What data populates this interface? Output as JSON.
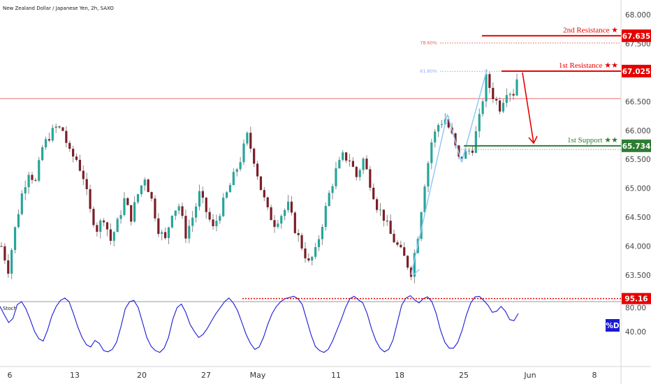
{
  "header": {
    "title": "New Zealand Dollar / Japanese Yen, 2h, SAXO"
  },
  "colors": {
    "up": "#26a69a",
    "down": "#7b1e28",
    "wick": "#888888",
    "resistance": "#e60000",
    "support": "#2e7d32",
    "stoch_line": "#1a1ad6",
    "fib_blue": "#8fa8ff",
    "fib_red": "#e06060",
    "projection": "#90caf9"
  },
  "chart_data": [
    {
      "type": "candlestick",
      "y_ticks": [
        "68.000",
        "67.500",
        "67.000",
        "66.500",
        "66.000",
        "65.500",
        "65.000",
        "64.500",
        "64.000",
        "63.500"
      ],
      "ylim": [
        63.2,
        68.1
      ],
      "x_ticks": [
        "6",
        "13",
        "20",
        "27",
        "May",
        "11",
        "18",
        "25",
        "Jun",
        "8"
      ],
      "close_path": [
        [
          0,
          64.0
        ],
        [
          2,
          63.6
        ],
        [
          4,
          64.3
        ],
        [
          6,
          64.9
        ],
        [
          8,
          65.3
        ],
        [
          10,
          65.1
        ],
        [
          12,
          65.7
        ],
        [
          14,
          65.9
        ],
        [
          16,
          66.05
        ],
        [
          18,
          66.0
        ],
        [
          20,
          65.6
        ],
        [
          22,
          65.5
        ],
        [
          24,
          65.2
        ],
        [
          26,
          64.6
        ],
        [
          28,
          64.3
        ],
        [
          30,
          64.5
        ],
        [
          32,
          64.1
        ],
        [
          34,
          64.4
        ],
        [
          36,
          64.8
        ],
        [
          38,
          64.5
        ],
        [
          40,
          64.9
        ],
        [
          42,
          65.2
        ],
        [
          44,
          64.8
        ],
        [
          46,
          64.3
        ],
        [
          48,
          64.1
        ],
        [
          50,
          64.6
        ],
        [
          52,
          64.7
        ],
        [
          54,
          64.2
        ],
        [
          56,
          64.5
        ],
        [
          58,
          64.9
        ],
        [
          60,
          64.6
        ],
        [
          62,
          64.3
        ],
        [
          64,
          64.6
        ],
        [
          66,
          64.9
        ],
        [
          68,
          65.2
        ],
        [
          70,
          65.5
        ],
        [
          72,
          65.9
        ],
        [
          74,
          65.5
        ],
        [
          76,
          65.0
        ],
        [
          78,
          64.6
        ],
        [
          80,
          64.4
        ],
        [
          82,
          64.55
        ],
        [
          84,
          64.7
        ],
        [
          86,
          64.3
        ],
        [
          88,
          64.0
        ],
        [
          90,
          63.7
        ],
        [
          92,
          63.9
        ],
        [
          94,
          64.4
        ],
        [
          96,
          64.9
        ],
        [
          98,
          65.3
        ],
        [
          100,
          65.55
        ],
        [
          102,
          65.5
        ],
        [
          104,
          65.2
        ],
        [
          106,
          65.5
        ],
        [
          108,
          65.1
        ],
        [
          110,
          64.7
        ],
        [
          112,
          64.5
        ],
        [
          114,
          64.2
        ],
        [
          116,
          64.0
        ],
        [
          118,
          63.8
        ],
        [
          120,
          63.55
        ],
        [
          122,
          64.2
        ],
        [
          124,
          65.1
        ],
        [
          126,
          65.8
        ],
        [
          128,
          66.1
        ],
        [
          130,
          66.2
        ],
        [
          132,
          65.9
        ],
        [
          134,
          65.5
        ],
        [
          136,
          65.6
        ],
        [
          138,
          65.7
        ],
        [
          140,
          66.2
        ],
        [
          142,
          66.9
        ],
        [
          144,
          66.6
        ],
        [
          146,
          66.4
        ],
        [
          148,
          66.7
        ],
        [
          150,
          66.65
        ],
        [
          151,
          66.9
        ]
      ],
      "fib_levels": [
        {
          "label": "78.60%",
          "value": 67.51
        },
        {
          "label": "61.80%",
          "value": 67.02
        }
      ],
      "levels": [
        {
          "name": "2nd Resistance ★",
          "tag": "67.635",
          "value": 67.635,
          "kind": "resistance"
        },
        {
          "name": "1st Resistance ★★",
          "tag": "67.025",
          "value": 67.025,
          "kind": "resistance"
        },
        {
          "name": "1st Support ★★",
          "tag": "65.734",
          "value": 65.734,
          "kind": "support"
        }
      ],
      "horizontal_line": 66.55,
      "dotted_support": 65.67
    },
    {
      "type": "line",
      "name": "Stoch",
      "legend": "%D",
      "y_ticks": [
        "80.00",
        "40.00"
      ],
      "ylim": [
        0,
        100
      ],
      "marker_value": 95.16,
      "marker_tag": "95.16",
      "values": [
        82,
        68,
        55,
        62,
        85,
        90,
        78,
        60,
        40,
        28,
        24,
        42,
        66,
        82,
        92,
        96,
        90,
        70,
        48,
        30,
        18,
        14,
        25,
        20,
        8,
        6,
        10,
        22,
        48,
        78,
        90,
        92,
        80,
        55,
        30,
        15,
        8,
        5,
        12,
        30,
        60,
        80,
        86,
        72,
        52,
        40,
        30,
        35,
        45,
        58,
        70,
        80,
        90,
        96,
        88,
        75,
        55,
        35,
        20,
        10,
        14,
        30,
        52,
        70,
        82,
        90,
        95,
        97,
        99,
        95,
        85,
        60,
        35,
        15,
        8,
        5,
        10,
        24,
        42,
        60,
        80,
        95,
        99,
        93,
        88,
        70,
        45,
        25,
        12,
        6,
        10,
        26,
        55,
        84,
        96,
        100,
        93,
        88,
        95,
        98,
        90,
        70,
        42,
        22,
        12,
        12,
        22,
        42,
        68,
        88,
        98,
        99,
        92,
        84,
        72,
        74,
        82,
        74,
        60,
        58,
        70
      ]
    }
  ]
}
